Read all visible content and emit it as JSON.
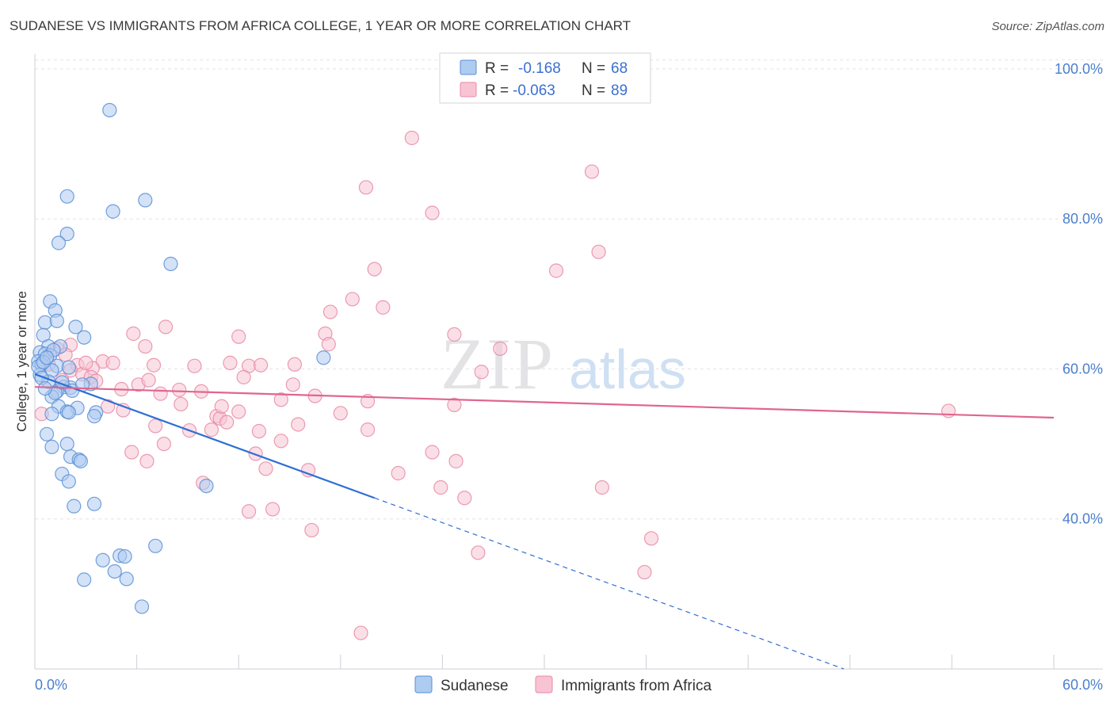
{
  "chart_data": {
    "type": "scatter",
    "title": "SUDANESE VS IMMIGRANTS FROM AFRICA COLLEGE, 1 YEAR OR MORE CORRELATION CHART",
    "source": "Source: ZipAtlas.com",
    "xlabel": "",
    "ylabel": "College, 1 year or more",
    "xlim": [
      0,
      60
    ],
    "ylim": [
      20,
      102
    ],
    "x_tick_labels": [
      "0.0%",
      "60.0%"
    ],
    "y_ticks": [
      {
        "value": 100,
        "label": "100.0%"
      },
      {
        "value": 80,
        "label": "80.0%"
      },
      {
        "value": 60,
        "label": "60.0%"
      },
      {
        "value": 40,
        "label": "40.0%"
      }
    ],
    "watermark": {
      "zip": "ZIP",
      "atlas": "atlas"
    },
    "legend": [
      {
        "r_label": "R =",
        "r_value": "-0.168",
        "n_label": "N =",
        "n_value": "68"
      },
      {
        "r_label": "R =",
        "r_value": "-0.063",
        "n_label": "N =",
        "n_value": "89"
      }
    ],
    "colors": {
      "sudanese_fill": "#aecbf0",
      "sudanese_stroke": "#5b8fd6",
      "sudanese_line": "#2f6fd3",
      "africa_fill": "#f8c4d4",
      "africa_stroke": "#e88aa8",
      "africa_line": "#e0658f",
      "grid": "#e4e4ea",
      "tick_text": "#4a7fd0"
    },
    "series": [
      {
        "name": "Sudanese",
        "trend": {
          "x0": 0.0,
          "y0": 59.3,
          "x1": 20.0,
          "y1": 42.8,
          "dash_to_x": 60.0
        },
        "points": [
          [
            4.4,
            94.5
          ],
          [
            1.9,
            83.0
          ],
          [
            4.6,
            81.0
          ],
          [
            6.5,
            82.5
          ],
          [
            1.9,
            78.0
          ],
          [
            1.4,
            76.8
          ],
          [
            8.0,
            74.0
          ],
          [
            0.9,
            69.0
          ],
          [
            1.2,
            67.8
          ],
          [
            0.6,
            66.2
          ],
          [
            1.3,
            66.4
          ],
          [
            2.4,
            65.6
          ],
          [
            0.5,
            64.5
          ],
          [
            2.9,
            64.2
          ],
          [
            0.8,
            63.0
          ],
          [
            1.5,
            63.0
          ],
          [
            0.3,
            62.2
          ],
          [
            0.6,
            62.0
          ],
          [
            0.9,
            61.8
          ],
          [
            0.2,
            61.0
          ],
          [
            0.4,
            60.6
          ],
          [
            1.3,
            60.4
          ],
          [
            2.0,
            60.2
          ],
          [
            1.0,
            59.8
          ],
          [
            0.3,
            59.2
          ],
          [
            17.0,
            61.5
          ],
          [
            0.8,
            58.3
          ],
          [
            3.3,
            58.0
          ],
          [
            1.7,
            57.6
          ],
          [
            2.1,
            57.5
          ],
          [
            2.2,
            57.1
          ],
          [
            1.3,
            57.0
          ],
          [
            1.0,
            56.3
          ],
          [
            1.4,
            55.0
          ],
          [
            2.5,
            54.8
          ],
          [
            1.9,
            54.3
          ],
          [
            2.0,
            54.2
          ],
          [
            3.6,
            54.2
          ],
          [
            3.5,
            53.7
          ],
          [
            1.0,
            54.0
          ],
          [
            0.7,
            51.3
          ],
          [
            1.9,
            50.0
          ],
          [
            1.0,
            49.6
          ],
          [
            2.1,
            48.3
          ],
          [
            2.6,
            47.9
          ],
          [
            2.7,
            47.7
          ],
          [
            1.6,
            46.0
          ],
          [
            2.0,
            45.0
          ],
          [
            10.1,
            44.4
          ],
          [
            3.5,
            42.0
          ],
          [
            2.3,
            41.7
          ],
          [
            7.1,
            36.4
          ],
          [
            5.0,
            35.1
          ],
          [
            5.3,
            35.0
          ],
          [
            4.0,
            34.5
          ],
          [
            4.7,
            33.0
          ],
          [
            5.4,
            32.0
          ],
          [
            2.9,
            31.9
          ],
          [
            6.3,
            28.3
          ],
          [
            0.2,
            60.3
          ],
          [
            0.5,
            60.9
          ],
          [
            1.1,
            62.5
          ],
          [
            0.7,
            61.5
          ],
          [
            0.4,
            58.8
          ],
          [
            1.6,
            58.2
          ],
          [
            1.2,
            56.8
          ],
          [
            2.8,
            57.9
          ],
          [
            0.6,
            57.4
          ]
        ]
      },
      {
        "name": "Immigrants from Africa",
        "trend": {
          "x0": 0.0,
          "y0": 57.6,
          "x1": 60.0,
          "y1": 53.5
        },
        "points": [
          [
            22.2,
            90.8
          ],
          [
            32.8,
            86.3
          ],
          [
            19.5,
            84.2
          ],
          [
            23.4,
            80.8
          ],
          [
            33.2,
            75.6
          ],
          [
            20.0,
            73.3
          ],
          [
            30.7,
            73.1
          ],
          [
            18.7,
            69.3
          ],
          [
            20.5,
            68.2
          ],
          [
            17.4,
            67.6
          ],
          [
            7.7,
            65.6
          ],
          [
            5.8,
            64.7
          ],
          [
            12.0,
            64.3
          ],
          [
            17.1,
            64.7
          ],
          [
            24.7,
            64.6
          ],
          [
            17.3,
            63.3
          ],
          [
            2.1,
            63.2
          ],
          [
            6.5,
            63.0
          ],
          [
            1.3,
            62.7
          ],
          [
            27.4,
            62.7
          ],
          [
            1.8,
            61.9
          ],
          [
            4.0,
            61.0
          ],
          [
            4.6,
            60.8
          ],
          [
            11.5,
            60.8
          ],
          [
            12.6,
            60.4
          ],
          [
            0.8,
            60.6
          ],
          [
            2.5,
            60.5
          ],
          [
            3.4,
            60.1
          ],
          [
            7.0,
            60.5
          ],
          [
            9.4,
            60.4
          ],
          [
            15.3,
            60.6
          ],
          [
            2.1,
            59.8
          ],
          [
            2.8,
            59.3
          ],
          [
            3.3,
            58.9
          ],
          [
            3.6,
            58.4
          ],
          [
            12.3,
            58.9
          ],
          [
            6.1,
            57.9
          ],
          [
            15.2,
            57.9
          ],
          [
            5.1,
            57.3
          ],
          [
            8.5,
            57.2
          ],
          [
            9.8,
            57.0
          ],
          [
            7.4,
            56.7
          ],
          [
            16.5,
            56.4
          ],
          [
            14.5,
            55.9
          ],
          [
            19.6,
            55.7
          ],
          [
            8.6,
            55.3
          ],
          [
            4.3,
            55.0
          ],
          [
            5.2,
            54.5
          ],
          [
            12.0,
            54.3
          ],
          [
            18.0,
            54.1
          ],
          [
            24.7,
            55.2
          ],
          [
            53.8,
            54.4
          ],
          [
            10.7,
            53.7
          ],
          [
            10.9,
            53.4
          ],
          [
            11.3,
            52.9
          ],
          [
            15.5,
            52.6
          ],
          [
            7.1,
            52.4
          ],
          [
            9.1,
            51.8
          ],
          [
            10.4,
            51.9
          ],
          [
            13.2,
            51.7
          ],
          [
            19.6,
            51.9
          ],
          [
            14.5,
            50.4
          ],
          [
            7.6,
            50.0
          ],
          [
            5.7,
            48.9
          ],
          [
            13.0,
            48.7
          ],
          [
            23.4,
            48.9
          ],
          [
            6.6,
            47.7
          ],
          [
            24.8,
            47.7
          ],
          [
            13.6,
            46.7
          ],
          [
            16.1,
            46.5
          ],
          [
            21.4,
            46.1
          ],
          [
            9.9,
            44.8
          ],
          [
            23.9,
            44.2
          ],
          [
            33.4,
            44.2
          ],
          [
            25.3,
            42.8
          ],
          [
            12.6,
            41.0
          ],
          [
            14.0,
            41.3
          ],
          [
            16.3,
            38.5
          ],
          [
            36.3,
            37.4
          ],
          [
            26.1,
            35.5
          ],
          [
            35.9,
            32.9
          ],
          [
            19.2,
            24.8
          ],
          [
            1.6,
            58.5
          ],
          [
            0.4,
            54.0
          ],
          [
            13.3,
            60.5
          ],
          [
            26.3,
            59.6
          ],
          [
            3.0,
            60.8
          ],
          [
            6.7,
            58.5
          ],
          [
            11.0,
            55.0
          ]
        ]
      }
    ],
    "bottom_legend": [
      {
        "label": "Sudanese"
      },
      {
        "label": "Immigrants from Africa"
      }
    ]
  }
}
